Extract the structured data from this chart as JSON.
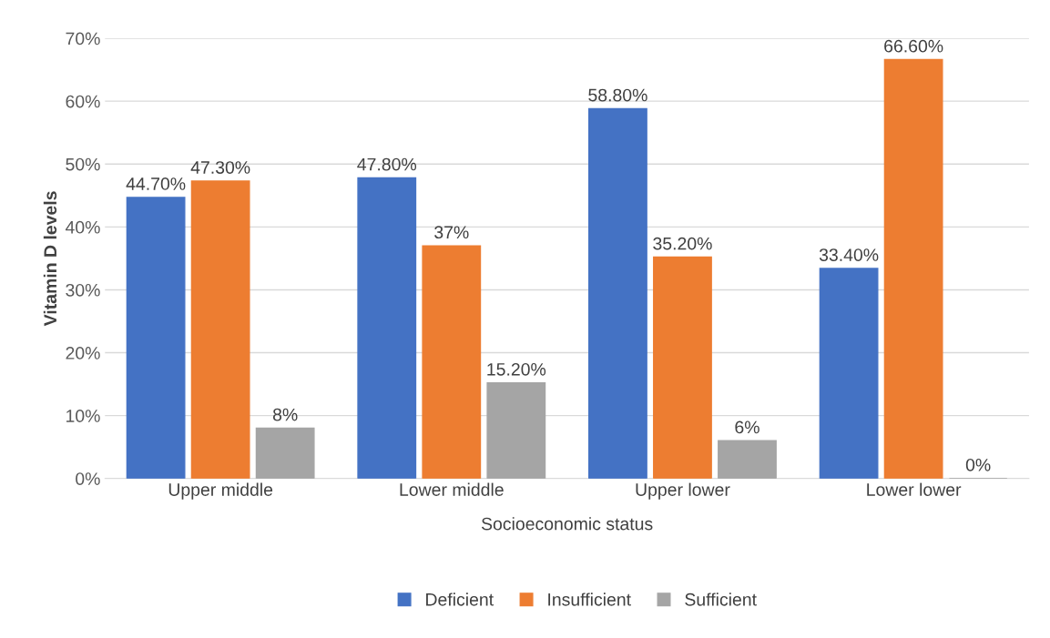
{
  "chart_data": {
    "type": "bar",
    "xlabel": "Socioeconomic status",
    "ylabel": "Vitamin D levels",
    "categories": [
      "Upper middle",
      "Lower middle",
      "Upper lower",
      "Lower lower"
    ],
    "series": [
      {
        "name": "Deficient",
        "color": "#4472c4",
        "values": [
          44.7,
          47.8,
          58.8,
          33.4
        ],
        "value_labels": [
          "44.70%",
          "47.80%",
          "58.80%",
          "33.40%"
        ]
      },
      {
        "name": "Insufficient",
        "color": "#ed7d31",
        "values": [
          47.3,
          37,
          35.2,
          66.6
        ],
        "value_labels": [
          "47.30%",
          "37%",
          "35.20%",
          "66.60%"
        ]
      },
      {
        "name": "Sufficient",
        "color": "#a5a5a5",
        "values": [
          8,
          15.2,
          6,
          0
        ],
        "value_labels": [
          "8%",
          "15.20%",
          "6%",
          "0%"
        ]
      }
    ],
    "ylim": [
      0,
      70
    ],
    "yticks": [
      {
        "value": 0,
        "label": "0%"
      },
      {
        "value": 10,
        "label": "10%"
      },
      {
        "value": 20,
        "label": "20%"
      },
      {
        "value": 30,
        "label": "30%"
      },
      {
        "value": 40,
        "label": "40%"
      },
      {
        "value": 50,
        "label": "50%"
      },
      {
        "value": 60,
        "label": "60%"
      },
      {
        "value": 70,
        "label": "70%"
      }
    ],
    "grid": "y",
    "legend": "bottom"
  }
}
